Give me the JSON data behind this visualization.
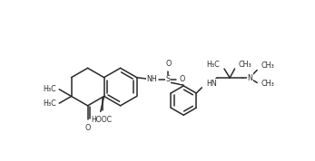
{
  "background": "#ffffff",
  "line_color": "#2a2a2a",
  "line_width": 1.1,
  "font_size": 5.8,
  "font_color": "#2a2a2a",
  "figsize": [
    3.47,
    1.78
  ],
  "dpi": 100,
  "xlim": [
    0,
    3.47
  ],
  "ylim": [
    0,
    1.78
  ]
}
